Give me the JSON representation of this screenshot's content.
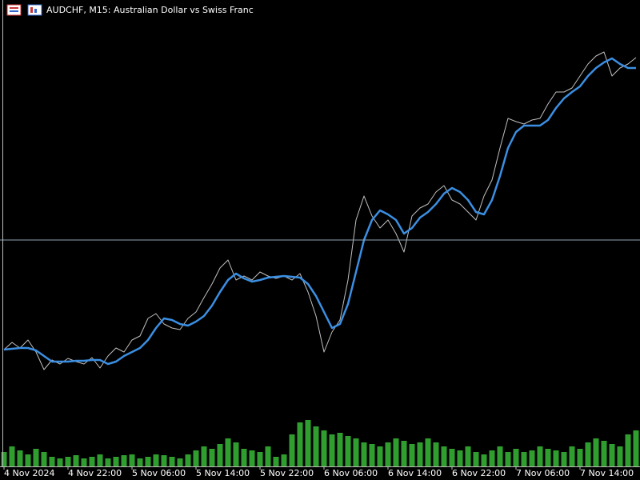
{
  "chart_data": {
    "type": "line",
    "title": "AUDCHF, M15:  Australian Dollar vs Swiss Franc",
    "x": [
      0,
      1,
      2,
      3,
      4,
      5,
      6,
      7,
      8,
      9,
      10,
      11,
      12,
      13,
      14,
      15,
      16,
      17,
      18,
      19,
      20,
      21,
      22,
      23,
      24,
      25,
      26,
      27,
      28,
      29,
      30,
      31,
      32,
      33,
      34,
      35,
      36,
      37,
      38,
      39,
      40,
      41,
      42,
      43,
      44,
      45,
      46,
      47,
      48,
      49,
      50,
      51,
      52,
      53,
      54,
      55,
      56,
      57,
      58,
      59,
      60,
      61,
      62,
      63,
      64,
      65,
      66,
      67,
      68,
      69,
      70,
      71,
      72,
      73,
      74,
      75,
      76,
      77,
      78,
      79
    ],
    "xlim": [
      -0.5,
      79.5
    ],
    "xticks": [
      {
        "value": 0,
        "label": "4 Nov 2024"
      },
      {
        "value": 8,
        "label": "4 Nov 22:00"
      },
      {
        "value": 16,
        "label": "5 Nov 06:00"
      },
      {
        "value": 24,
        "label": "5 Nov 14:00"
      },
      {
        "value": 32,
        "label": "5 Nov 22:00"
      },
      {
        "value": 40,
        "label": "6 Nov 06:00"
      },
      {
        "value": 48,
        "label": "6 Nov 14:00"
      },
      {
        "value": 56,
        "label": "6 Nov 22:00"
      },
      {
        "value": 64,
        "label": "7 Nov 06:00"
      },
      {
        "value": 72,
        "label": "7 Nov 14:00"
      }
    ],
    "ylim": [
      0,
      583
    ],
    "series": [
      {
        "color": "#bfbfbf",
        "width": 1,
        "values": [
          146,
          155,
          148,
          158,
          143,
          121,
          133,
          128,
          135,
          131,
          128,
          136,
          123,
          138,
          148,
          143,
          158,
          163,
          185,
          191,
          178,
          173,
          171,
          185,
          193,
          211,
          228,
          248,
          258,
          233,
          238,
          233,
          243,
          238,
          235,
          238,
          233,
          241,
          218,
          188,
          143,
          168,
          183,
          233,
          308,
          338,
          313,
          298,
          308,
          291,
          268,
          313,
          323,
          328,
          343,
          351,
          333,
          328,
          318,
          308,
          338,
          358,
          398,
          435,
          431,
          428,
          433,
          435,
          453,
          468,
          468,
          473,
          488,
          503,
          513,
          518,
          488,
          498,
          503,
          511
        ]
      },
      {
        "color": "#3b8fe3",
        "width": 2.5,
        "values": [
          146,
          147,
          148,
          148,
          145,
          138,
          131,
          131,
          131,
          132,
          132,
          133,
          133,
          128,
          131,
          138,
          143,
          148,
          158,
          173,
          185,
          183,
          178,
          176,
          181,
          188,
          201,
          218,
          233,
          241,
          235,
          231,
          233,
          236,
          237,
          238,
          237,
          236,
          228,
          213,
          193,
          173,
          178,
          203,
          243,
          283,
          308,
          320,
          315,
          308,
          291,
          298,
          311,
          318,
          328,
          341,
          348,
          343,
          333,
          318,
          315,
          333,
          363,
          398,
          418,
          426,
          426,
          426,
          433,
          448,
          460,
          468,
          475,
          488,
          498,
          505,
          510,
          503,
          498,
          498
        ]
      }
    ],
    "volume": {
      "color": "#2f9e2f",
      "ylim": [
        0,
        100
      ],
      "values": [
        18,
        25,
        20,
        15,
        22,
        18,
        12,
        10,
        12,
        14,
        10,
        12,
        15,
        10,
        12,
        14,
        15,
        10,
        12,
        15,
        14,
        12,
        10,
        15,
        20,
        25,
        22,
        28,
        35,
        30,
        22,
        20,
        18,
        25,
        12,
        15,
        40,
        55,
        58,
        50,
        45,
        40,
        42,
        38,
        35,
        30,
        28,
        25,
        30,
        35,
        32,
        28,
        30,
        35,
        30,
        25,
        22,
        20,
        25,
        18,
        15,
        20,
        25,
        18,
        22,
        18,
        20,
        25,
        22,
        20,
        18,
        25,
        22,
        30,
        35,
        32,
        28,
        25,
        40,
        45
      ]
    }
  }
}
